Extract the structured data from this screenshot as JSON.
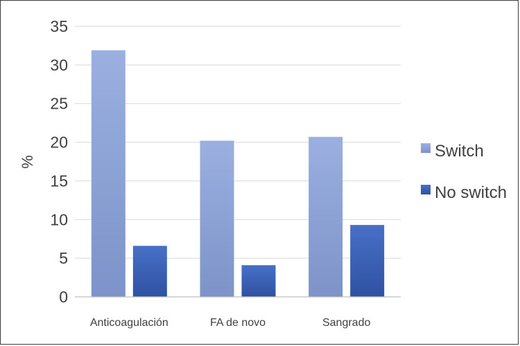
{
  "chart_data": {
    "type": "bar",
    "title": "",
    "xlabel": "",
    "ylabel": "%",
    "ylim": [
      0,
      35
    ],
    "yticks": [
      0,
      5,
      10,
      15,
      20,
      25,
      30,
      35
    ],
    "grid": true,
    "legend_position": "right",
    "categories": [
      "Anticoagulación",
      "FA de novo",
      "Sangrado"
    ],
    "series": [
      {
        "name": "Switch",
        "values": [
          31.9,
          20.2,
          20.7
        ],
        "color": "#8fa6da"
      },
      {
        "name": "No switch",
        "values": [
          6.6,
          4.1,
          9.3
        ],
        "color": "#3c63b8"
      }
    ]
  }
}
